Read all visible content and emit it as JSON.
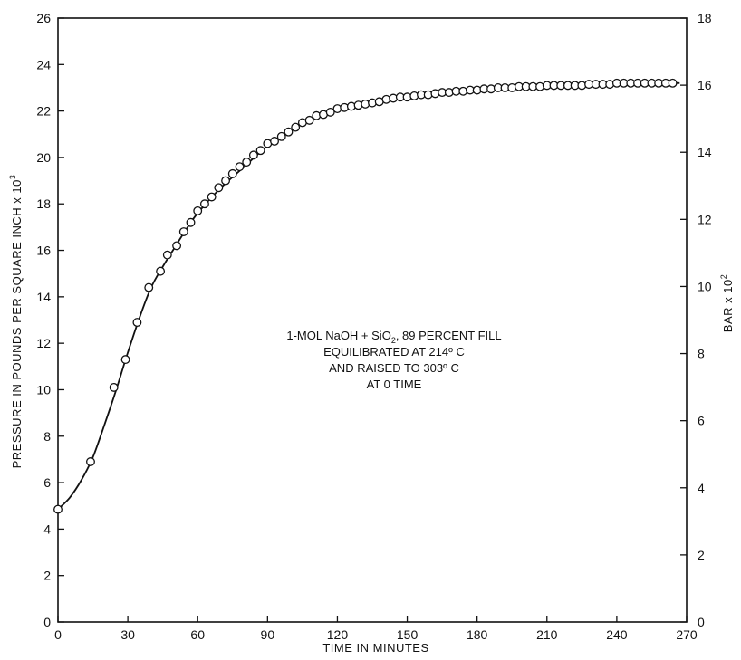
{
  "chart_data": {
    "type": "scatter",
    "xlabel": "TIME IN MINUTES",
    "ylabel_left": "PRESSURE IN POUNDS PER SQUARE INCH x 10",
    "ylabel_left_exponent": "3",
    "ylabel_right": "BAR x 10",
    "ylabel_right_exponent": "2",
    "xlim": [
      0,
      270
    ],
    "ylim_left": [
      0,
      26
    ],
    "ylim_right": [
      0,
      18
    ],
    "x_ticks": [
      "0",
      "30",
      "60",
      "90",
      "120",
      "150",
      "180",
      "210",
      "240",
      "270"
    ],
    "y_left_ticks": [
      "0",
      "2",
      "4",
      "6",
      "8",
      "10",
      "12",
      "14",
      "16",
      "18",
      "20",
      "22",
      "24",
      "26"
    ],
    "y_right_ticks": [
      "0",
      "2",
      "4",
      "6",
      "8",
      "10",
      "12",
      "14",
      "16",
      "18"
    ],
    "grid": false,
    "annotation": {
      "line1_a": "1-MOL NaOH + SiO",
      "line1_sub": "2",
      "line1_b": ", 89 PERCENT FILL",
      "line2": "EQUILIBRATED AT 214º C",
      "line3": "AND RAISED TO 303º C",
      "line4": "AT 0 TIME"
    },
    "series": [
      {
        "marker": "open-circle",
        "x": [
          0,
          14,
          24,
          29,
          34,
          39,
          44,
          47,
          51,
          54,
          57,
          60,
          63,
          66,
          69,
          72,
          75,
          78,
          81,
          84,
          87,
          90,
          93,
          96,
          99,
          102,
          105,
          108,
          111,
          114,
          117,
          120,
          123,
          126,
          129,
          132,
          135,
          138,
          141,
          144,
          147,
          150,
          153,
          156,
          159,
          162,
          165,
          168,
          171,
          174,
          177,
          180,
          183,
          186,
          189,
          192,
          195,
          198,
          201,
          204,
          207,
          210,
          213,
          216,
          219,
          222,
          225,
          228,
          231,
          234,
          237,
          240,
          243,
          246,
          249,
          252,
          255,
          258,
          261,
          264
        ],
        "y": [
          4.85,
          6.9,
          10.1,
          11.3,
          12.9,
          14.4,
          15.1,
          15.8,
          16.2,
          16.8,
          17.2,
          17.7,
          18.0,
          18.3,
          18.7,
          19.0,
          19.3,
          19.6,
          19.8,
          20.1,
          20.3,
          20.6,
          20.7,
          20.9,
          21.1,
          21.3,
          21.5,
          21.6,
          21.8,
          21.85,
          21.95,
          22.1,
          22.15,
          22.2,
          22.25,
          22.3,
          22.35,
          22.4,
          22.5,
          22.55,
          22.6,
          22.6,
          22.65,
          22.7,
          22.7,
          22.75,
          22.8,
          22.8,
          22.85,
          22.85,
          22.9,
          22.9,
          22.95,
          22.95,
          23.0,
          23.0,
          23.0,
          23.05,
          23.05,
          23.05,
          23.05,
          23.1,
          23.1,
          23.1,
          23.1,
          23.1,
          23.1,
          23.15,
          23.15,
          23.15,
          23.15,
          23.2,
          23.2,
          23.2,
          23.2,
          23.2,
          23.2,
          23.2,
          23.2,
          23.2
        ]
      }
    ],
    "fit_curve": {
      "style": "solid",
      "x": [
        0,
        5,
        10,
        15,
        20,
        25,
        30,
        35,
        40,
        45,
        50,
        55,
        60,
        70,
        80,
        90,
        100,
        110,
        120,
        135,
        150,
        165,
        180,
        195,
        210,
        225,
        240,
        255,
        267
      ],
      "y": [
        4.85,
        5.35,
        6.1,
        7.1,
        8.5,
        10.0,
        11.6,
        13.1,
        14.4,
        15.3,
        16.1,
        16.9,
        17.6,
        18.7,
        19.6,
        20.5,
        21.2,
        21.7,
        22.05,
        22.4,
        22.6,
        22.75,
        22.9,
        23.0,
        23.1,
        23.15,
        23.2,
        23.2,
        23.2
      ]
    }
  }
}
